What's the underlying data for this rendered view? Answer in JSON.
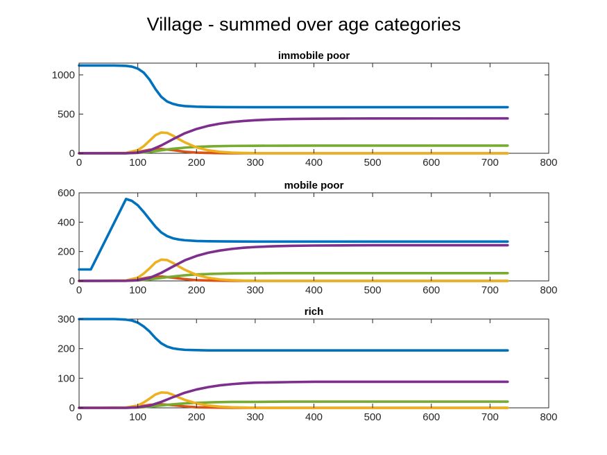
{
  "figure": {
    "title": "Village - summed over age categories"
  },
  "colors": {
    "blue": "#0072BD",
    "purple": "#7E2F8E",
    "green": "#77AC30",
    "yellow": "#EDB120",
    "red": "#D95319"
  },
  "chart_data": [
    {
      "type": "line",
      "title": "immobile poor",
      "xlim": [
        0,
        800
      ],
      "ylim": [
        0,
        1150
      ],
      "xticks": [
        0,
        100,
        200,
        300,
        400,
        500,
        600,
        700,
        800
      ],
      "yticks": [
        0,
        500,
        1000
      ],
      "series": [
        {
          "color": "#D95319",
          "x": [
            0,
            80,
            100,
            120,
            140,
            160,
            180,
            200,
            230,
            260,
            300,
            730
          ],
          "y": [
            0,
            2,
            15,
            45,
            55,
            40,
            20,
            8,
            3,
            1,
            0,
            0
          ]
        },
        {
          "color": "#77AC30",
          "x": [
            0,
            80,
            100,
            120,
            140,
            160,
            180,
            200,
            230,
            260,
            300,
            350,
            400,
            730
          ],
          "y": [
            0,
            1,
            5,
            18,
            38,
            58,
            72,
            82,
            90,
            94,
            96,
            97,
            98,
            98
          ]
        },
        {
          "color": "#EDB120",
          "x": [
            0,
            80,
            100,
            110,
            120,
            130,
            140,
            150,
            160,
            170,
            180,
            200,
            220,
            240,
            260,
            280,
            300,
            330,
            730
          ],
          "y": [
            0,
            5,
            40,
            90,
            160,
            230,
            265,
            260,
            225,
            180,
            140,
            75,
            38,
            18,
            8,
            4,
            2,
            0,
            0
          ]
        },
        {
          "color": "#7E2F8E",
          "x": [
            0,
            80,
            100,
            120,
            140,
            160,
            180,
            200,
            220,
            240,
            260,
            280,
            300,
            330,
            360,
            400,
            450,
            500,
            730
          ],
          "y": [
            0,
            1,
            8,
            35,
            100,
            180,
            255,
            310,
            350,
            378,
            398,
            412,
            422,
            432,
            437,
            441,
            443,
            444,
            445
          ]
        },
        {
          "color": "#0072BD",
          "x": [
            0,
            60,
            80,
            90,
            100,
            110,
            120,
            130,
            140,
            150,
            160,
            170,
            180,
            200,
            220,
            250,
            300,
            730
          ],
          "y": [
            1120,
            1120,
            1115,
            1105,
            1080,
            1030,
            940,
            820,
            720,
            660,
            630,
            612,
            602,
            594,
            591,
            589,
            588,
            588
          ]
        }
      ]
    },
    {
      "type": "line",
      "title": "mobile poor",
      "xlim": [
        0,
        800
      ],
      "ylim": [
        0,
        600
      ],
      "xticks": [
        0,
        100,
        200,
        300,
        400,
        500,
        600,
        700,
        800
      ],
      "yticks": [
        0,
        200,
        400,
        600
      ],
      "series": [
        {
          "color": "#D95319",
          "x": [
            0,
            80,
            100,
            120,
            140,
            160,
            180,
            200,
            230,
            260,
            300,
            730
          ],
          "y": [
            0,
            2,
            10,
            25,
            30,
            22,
            12,
            5,
            2,
            1,
            0,
            0
          ]
        },
        {
          "color": "#77AC30",
          "x": [
            0,
            80,
            100,
            120,
            140,
            160,
            180,
            200,
            230,
            260,
            300,
            350,
            400,
            730
          ],
          "y": [
            0,
            1,
            3,
            10,
            20,
            30,
            38,
            44,
            48,
            51,
            52,
            53,
            53,
            53
          ]
        },
        {
          "color": "#EDB120",
          "x": [
            0,
            80,
            100,
            110,
            120,
            130,
            140,
            150,
            160,
            170,
            180,
            200,
            220,
            240,
            260,
            280,
            300,
            330,
            730
          ],
          "y": [
            0,
            3,
            22,
            50,
            85,
            125,
            145,
            142,
            122,
            98,
            76,
            41,
            21,
            10,
            5,
            2,
            1,
            0,
            0
          ]
        },
        {
          "color": "#7E2F8E",
          "x": [
            0,
            80,
            100,
            120,
            140,
            160,
            180,
            200,
            220,
            240,
            260,
            280,
            300,
            330,
            360,
            400,
            450,
            500,
            730
          ],
          "y": [
            0,
            1,
            5,
            20,
            55,
            98,
            140,
            170,
            192,
            207,
            218,
            226,
            231,
            236,
            239,
            241,
            242,
            243,
            243
          ]
        },
        {
          "color": "#0072BD",
          "x": [
            0,
            20,
            80,
            90,
            100,
            110,
            120,
            130,
            140,
            150,
            160,
            170,
            180,
            200,
            220,
            250,
            300,
            730
          ],
          "y": [
            78,
            78,
            558,
            545,
            515,
            470,
            420,
            370,
            330,
            305,
            290,
            282,
            277,
            272,
            270,
            269,
            268,
            268
          ]
        }
      ]
    },
    {
      "type": "line",
      "title": "rich",
      "xlim": [
        0,
        800
      ],
      "ylim": [
        0,
        300
      ],
      "xticks": [
        0,
        100,
        200,
        300,
        400,
        500,
        600,
        700,
        800
      ],
      "yticks": [
        0,
        100,
        200,
        300
      ],
      "series": [
        {
          "color": "#D95319",
          "x": [
            0,
            80,
            100,
            120,
            140,
            160,
            180,
            200,
            230,
            260,
            300,
            730
          ],
          "y": [
            0,
            1,
            4,
            10,
            12,
            9,
            5,
            2,
            1,
            0,
            0,
            0
          ]
        },
        {
          "color": "#77AC30",
          "x": [
            0,
            80,
            100,
            120,
            140,
            160,
            180,
            200,
            230,
            260,
            300,
            350,
            400,
            730
          ],
          "y": [
            0,
            0,
            1,
            4,
            8,
            12,
            15,
            17,
            19,
            20,
            20,
            21,
            21,
            21
          ]
        },
        {
          "color": "#EDB120",
          "x": [
            0,
            80,
            100,
            110,
            120,
            130,
            140,
            150,
            160,
            170,
            180,
            200,
            220,
            240,
            260,
            280,
            300,
            330,
            730
          ],
          "y": [
            0,
            1,
            8,
            18,
            31,
            45,
            52,
            51,
            44,
            35,
            27,
            15,
            8,
            4,
            2,
            1,
            0,
            0,
            0
          ]
        },
        {
          "color": "#7E2F8E",
          "x": [
            0,
            80,
            100,
            120,
            140,
            160,
            180,
            200,
            220,
            240,
            260,
            280,
            300,
            330,
            360,
            400,
            450,
            500,
            730
          ],
          "y": [
            0,
            0,
            2,
            7,
            20,
            36,
            51,
            62,
            70,
            76,
            80,
            83,
            85,
            86,
            87,
            88,
            88,
            88,
            88
          ]
        },
        {
          "color": "#0072BD",
          "x": [
            0,
            60,
            80,
            90,
            100,
            110,
            120,
            130,
            140,
            150,
            160,
            170,
            180,
            200,
            220,
            250,
            300,
            730
          ],
          "y": [
            300,
            300,
            298,
            295,
            288,
            275,
            258,
            236,
            218,
            207,
            201,
            198,
            196,
            195,
            194,
            194,
            194,
            194
          ]
        }
      ]
    }
  ]
}
